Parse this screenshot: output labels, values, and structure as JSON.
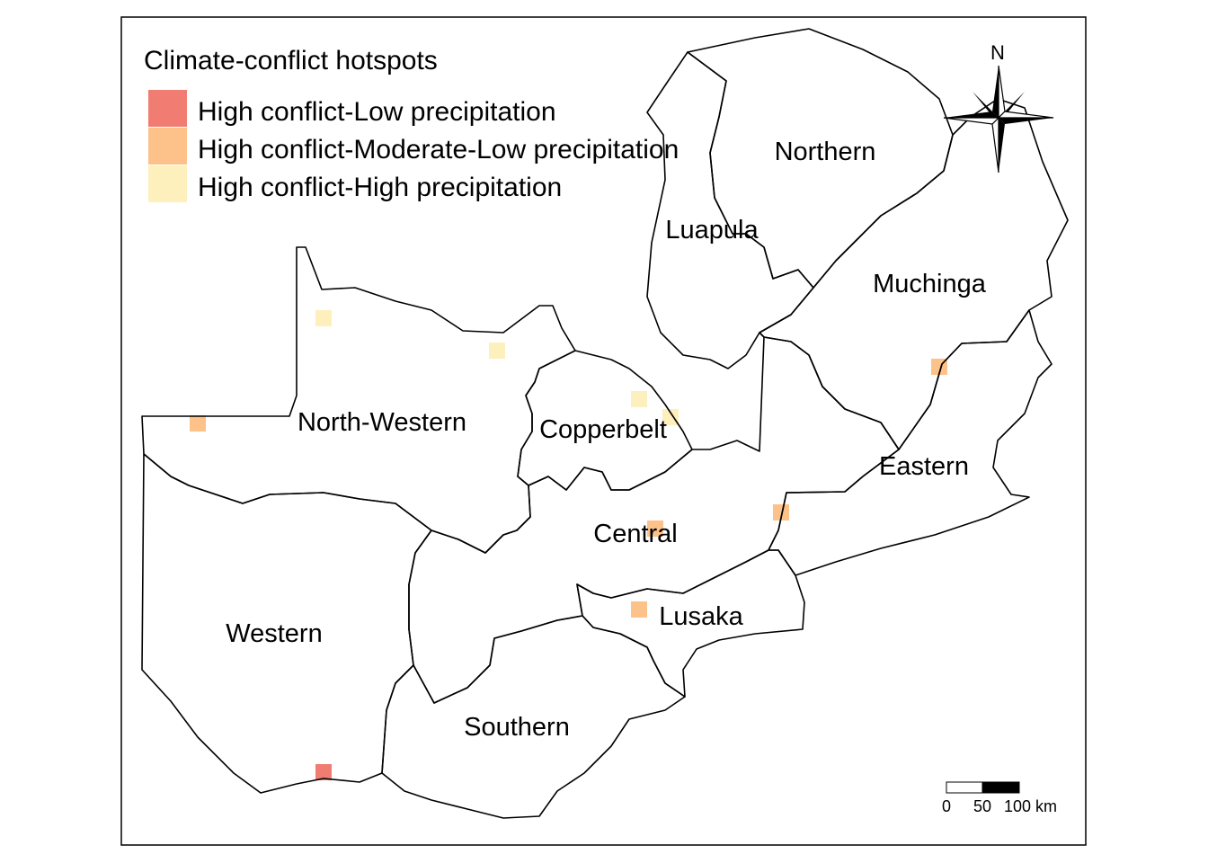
{
  "legend": {
    "title": "Climate-conflict hotspots",
    "items": [
      {
        "label": "High conflict-Low precipitation",
        "color": "#F07C72"
      },
      {
        "label": "High conflict-Moderate-Low precipitation",
        "color": "#FDC28A"
      },
      {
        "label": "High conflict-High precipitation",
        "color": "#FEF0BD"
      }
    ]
  },
  "regions": {
    "northern": "Northern",
    "luapula": "Luapula",
    "muchinga": "Muchinga",
    "north_western": "North-Western",
    "copperbelt": "Copperbelt",
    "eastern": "Eastern",
    "central": "Central",
    "lusaka": "Lusaka",
    "western": "Western",
    "southern": "Southern"
  },
  "north_arrow": {
    "label": "N"
  },
  "scale_bar": {
    "ticks": [
      "0",
      "50",
      "100 km"
    ]
  },
  "hotspots": [
    {
      "category": 0,
      "region": "Western"
    },
    {
      "category": 1,
      "region": "Muchinga"
    },
    {
      "category": 1,
      "region": "Eastern"
    },
    {
      "category": 1,
      "region": "Central"
    },
    {
      "category": 1,
      "region": "Lusaka"
    },
    {
      "category": 1,
      "region": "North-Western"
    },
    {
      "category": 2,
      "region": "North-Western"
    },
    {
      "category": 2,
      "region": "North-Western"
    },
    {
      "category": 2,
      "region": "Copperbelt"
    },
    {
      "category": 2,
      "region": "Copperbelt"
    }
  ]
}
